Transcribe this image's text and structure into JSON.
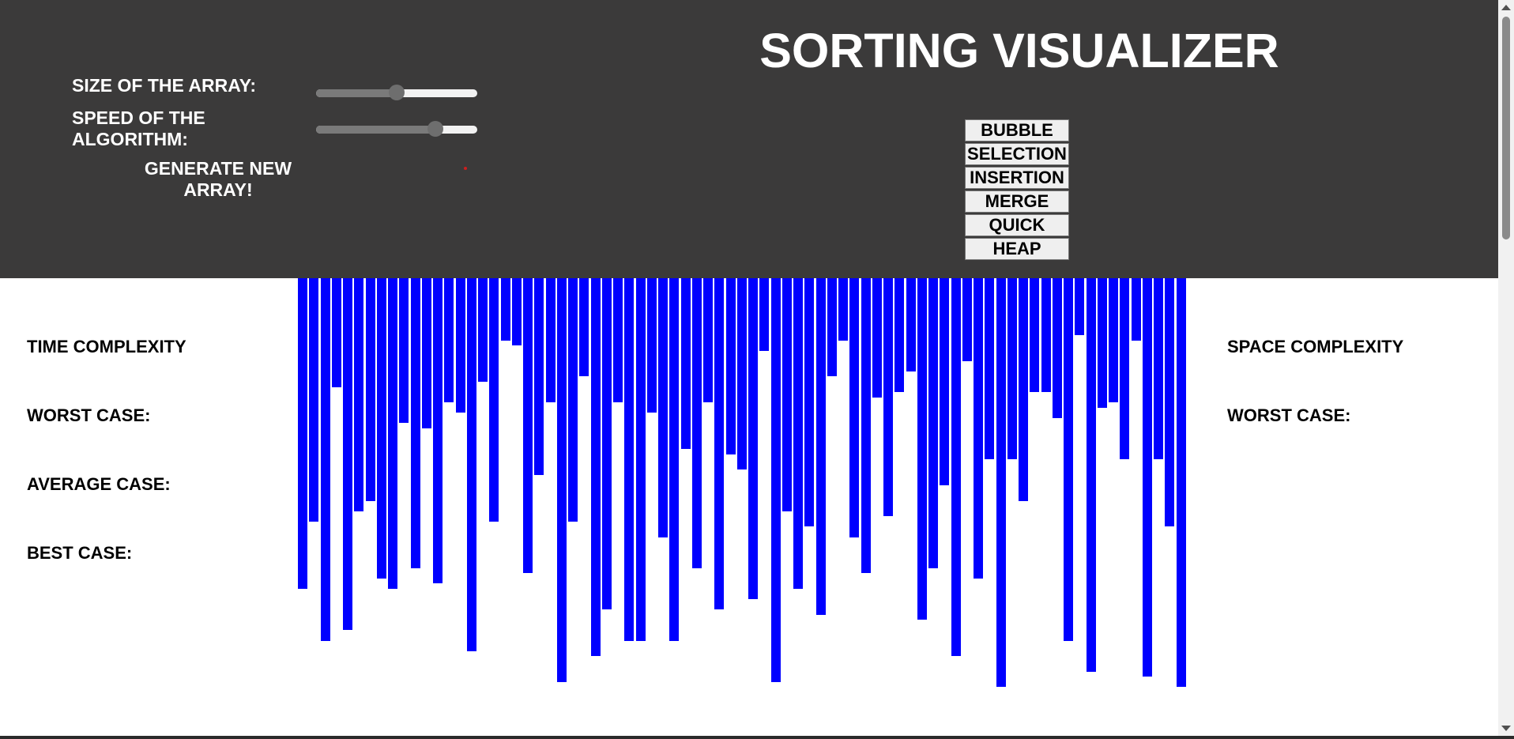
{
  "header": {
    "title": "SORTING VISUALIZER",
    "background_color": "#3b3a3a",
    "controls": {
      "size_label": "SIZE OF THE ARRAY:",
      "size_value_fraction": 0.5,
      "speed_label": "SPEED OF THE ALGORITHM:",
      "speed_value_fraction": 0.74,
      "generate_label": "GENERATE NEW ARRAY!"
    },
    "algorithms": [
      "BUBBLE",
      "SELECTION",
      "INSERTION",
      "MERGE",
      "QUICK",
      "HEAP"
    ]
  },
  "time_complexity": {
    "heading": "TIME COMPLEXITY",
    "worst_label": "WORST CASE:",
    "average_label": "AVERAGE CASE:",
    "best_label": "BEST CASE:"
  },
  "space_complexity": {
    "heading": "SPACE COMPLEXITY",
    "worst_label": "WORST CASE:"
  },
  "bar_color": "#0000ff",
  "array_values": [
    60,
    47,
    70,
    21,
    68,
    45,
    43,
    58,
    60,
    28,
    56,
    29,
    59,
    24,
    26,
    72,
    20,
    47,
    12,
    13,
    57,
    38,
    24,
    78,
    47,
    19,
    73,
    64,
    24,
    70,
    70,
    26,
    50,
    70,
    33,
    56,
    24,
    64,
    34,
    37,
    62,
    14,
    78,
    45,
    60,
    48,
    65,
    19,
    12,
    50,
    57,
    23,
    46,
    22,
    18,
    66,
    56,
    40,
    73,
    16,
    58,
    35,
    79,
    35,
    43,
    22,
    22,
    27,
    70,
    11,
    76,
    25,
    24,
    35,
    12,
    77,
    35,
    48,
    79
  ],
  "scrollbar_position_fraction": 0
}
